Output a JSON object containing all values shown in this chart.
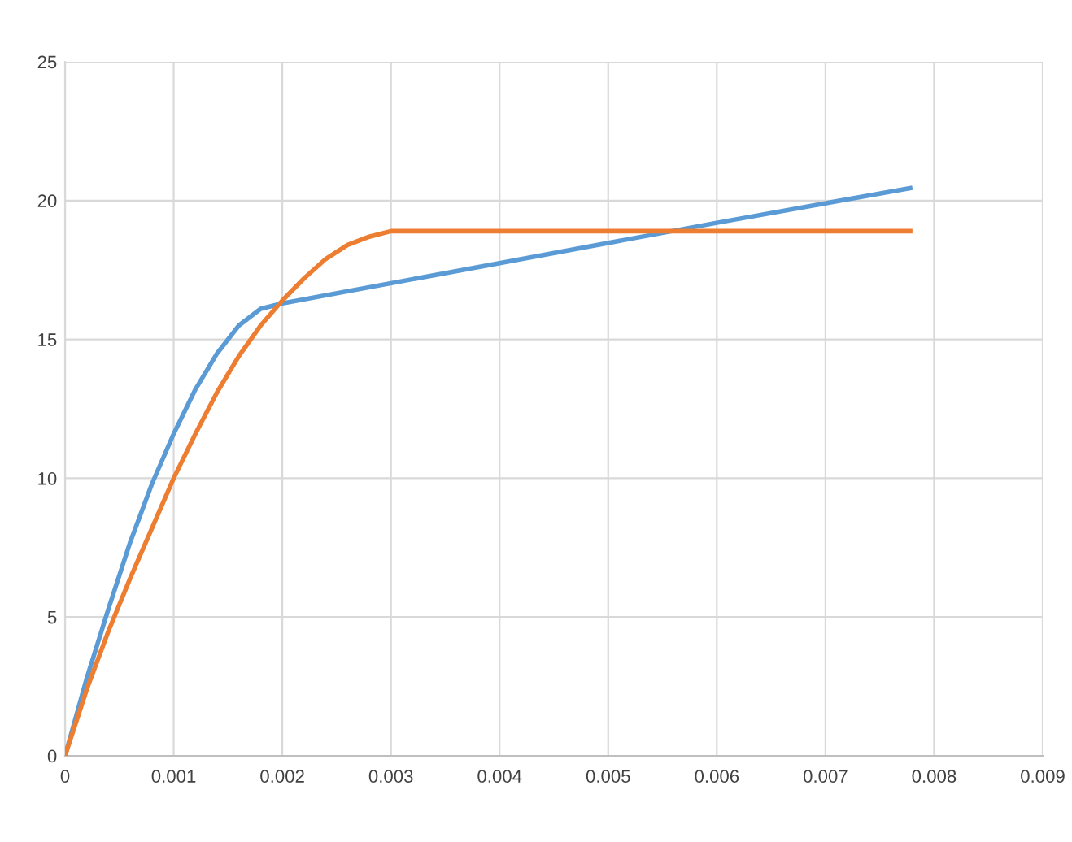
{
  "chart_data": {
    "type": "line",
    "series": [
      {
        "color": "#5b9bd5",
        "x": [
          0,
          0.0002,
          0.0004,
          0.0006,
          0.0008,
          0.001,
          0.0012,
          0.0014,
          0.0016,
          0.0018,
          0.002,
          0.004,
          0.006,
          0.00778
        ],
        "values": [
          0,
          2.8,
          5.3,
          7.7,
          9.8,
          11.6,
          13.2,
          14.5,
          15.5,
          16.1,
          16.3,
          17.75,
          19.2,
          20.45
        ]
      },
      {
        "color": "#ed7d31",
        "x": [
          0,
          0.0002,
          0.0004,
          0.0006,
          0.0008,
          0.001,
          0.0012,
          0.0014,
          0.0016,
          0.0018,
          0.002,
          0.0022,
          0.0024,
          0.0026,
          0.0028,
          0.003,
          0.0031,
          0.00778
        ],
        "values": [
          0,
          2.4,
          4.5,
          6.4,
          8.2,
          10.0,
          11.6,
          13.1,
          14.4,
          15.5,
          16.4,
          17.2,
          17.9,
          18.4,
          18.7,
          18.9,
          18.9,
          18.9
        ]
      }
    ],
    "xlim": [
      0,
      0.009
    ],
    "xticks": [
      0,
      0.001,
      0.002,
      0.003,
      0.004,
      0.005,
      0.006,
      0.007,
      0.008,
      0.009
    ],
    "ylim": [
      0,
      25
    ],
    "yticks": [
      0,
      5,
      10,
      15,
      20,
      25
    ],
    "grid": true,
    "legend": false,
    "marker": "none",
    "line_style": "solid"
  }
}
